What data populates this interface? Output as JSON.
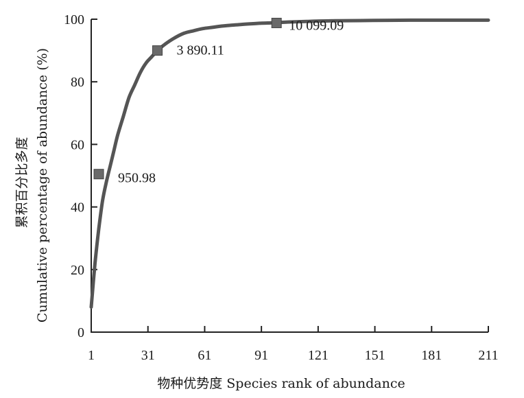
{
  "chart_data": {
    "type": "line",
    "xlabel": "物种优势度 Species rank of abundance",
    "ylabel_cn": "累积百分比多度",
    "ylabel_en": "Cumulative percentage of abundance (%)",
    "xlim": [
      1,
      211
    ],
    "ylim": [
      0,
      100
    ],
    "xticks": [
      "1",
      "31",
      "61",
      "91",
      "121",
      "151",
      "181",
      "211"
    ],
    "yticks": [
      "0",
      "20",
      "40",
      "60",
      "80",
      "100"
    ],
    "grid": false,
    "series": [
      {
        "x": [
          1,
          3,
          5,
          7,
          9,
          11,
          13,
          15,
          18,
          21,
          24,
          27,
          30,
          33,
          36,
          40,
          45,
          50,
          55,
          60,
          65,
          70,
          75,
          80,
          85,
          90,
          95,
          99,
          105,
          115,
          130,
          150,
          170,
          190,
          211
        ],
        "y": [
          8,
          22,
          33,
          42,
          48,
          53,
          58,
          63,
          69,
          75,
          79,
          83,
          86,
          88,
          90,
          92,
          94,
          95.5,
          96.3,
          97,
          97.4,
          97.8,
          98.1,
          98.3,
          98.5,
          98.7,
          98.8,
          98.9,
          99.1,
          99.3,
          99.5,
          99.6,
          99.7,
          99.7,
          99.7
        ]
      }
    ],
    "markers": [
      {
        "x": 5,
        "y": 50.5,
        "label": "950.98"
      },
      {
        "x": 36,
        "y": 90,
        "label": "3 890.11"
      },
      {
        "x": 99,
        "y": 98.8,
        "label": "10 099.09"
      }
    ]
  }
}
